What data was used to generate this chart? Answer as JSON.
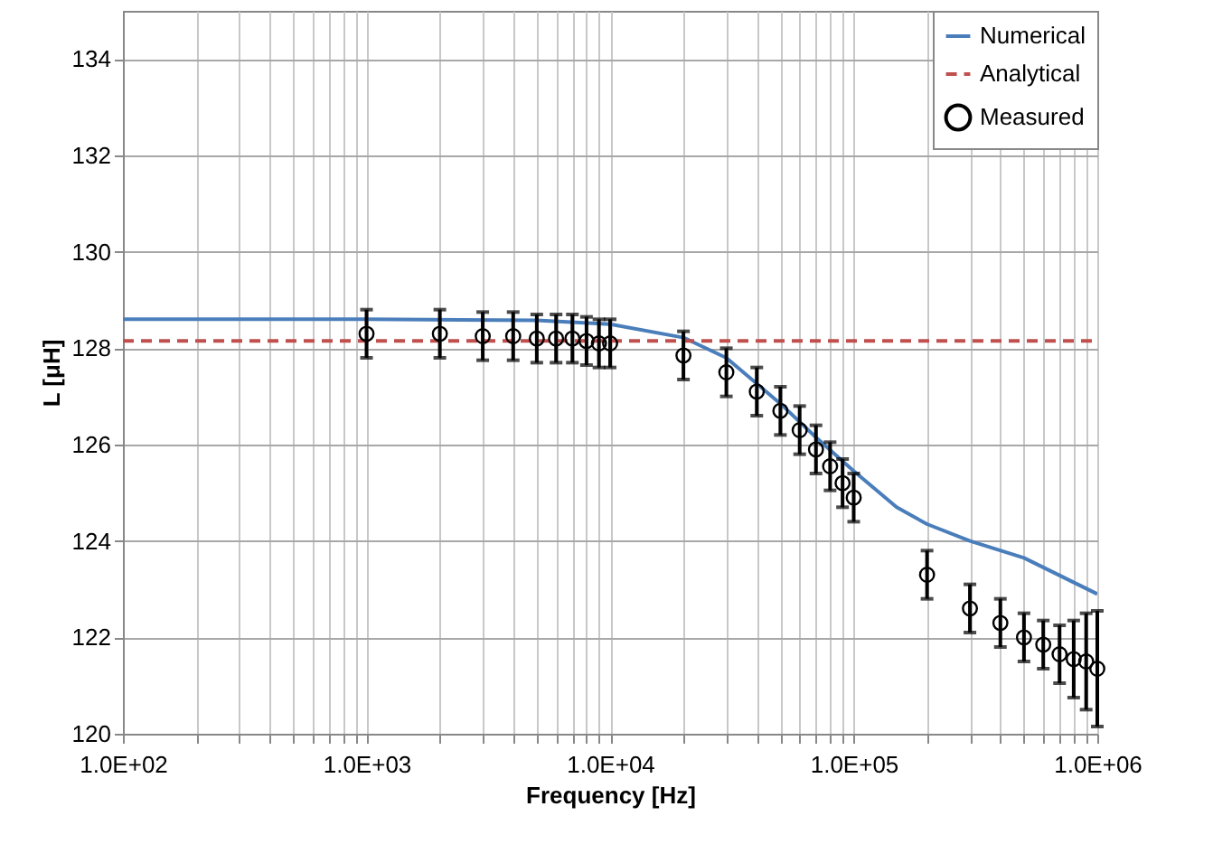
{
  "chart_data": {
    "type": "line",
    "xlabel": "Frequency [Hz]",
    "ylabel": "L [μH]",
    "log": "x",
    "grid": true,
    "legend": "top right",
    "xlim": [
      100,
      1000000
    ],
    "ylim": [
      120,
      135
    ],
    "xticks": [
      {
        "value": 100,
        "label": "1.0E+02"
      },
      {
        "value": 200,
        "label": null
      },
      {
        "value": 300,
        "label": null
      },
      {
        "value": 400,
        "label": null
      },
      {
        "value": 500,
        "label": null
      },
      {
        "value": 600,
        "label": null
      },
      {
        "value": 700,
        "label": null
      },
      {
        "value": 800,
        "label": null
      },
      {
        "value": 900,
        "label": null
      },
      {
        "value": 1000,
        "label": "1.0E+03"
      },
      {
        "value": 2000,
        "label": null
      },
      {
        "value": 3000,
        "label": null
      },
      {
        "value": 4000,
        "label": null
      },
      {
        "value": 5000,
        "label": null
      },
      {
        "value": 6000,
        "label": null
      },
      {
        "value": 7000,
        "label": null
      },
      {
        "value": 8000,
        "label": null
      },
      {
        "value": 9000,
        "label": null
      },
      {
        "value": 10000,
        "label": "1.0E+04"
      },
      {
        "value": 20000,
        "label": null
      },
      {
        "value": 30000,
        "label": null
      },
      {
        "value": 40000,
        "label": null
      },
      {
        "value": 50000,
        "label": null
      },
      {
        "value": 60000,
        "label": null
      },
      {
        "value": 70000,
        "label": null
      },
      {
        "value": 80000,
        "label": null
      },
      {
        "value": 90000,
        "label": null
      },
      {
        "value": 100000,
        "label": "1.0E+05"
      },
      {
        "value": 200000,
        "label": null
      },
      {
        "value": 300000,
        "label": null
      },
      {
        "value": 400000,
        "label": null
      },
      {
        "value": 500000,
        "label": null
      },
      {
        "value": 600000,
        "label": null
      },
      {
        "value": 700000,
        "label": null
      },
      {
        "value": 800000,
        "label": null
      },
      {
        "value": 900000,
        "label": null
      },
      {
        "value": 1000000,
        "label": "1.0E+06"
      }
    ],
    "yticks": [
      120,
      122,
      124,
      126,
      128,
      130,
      132,
      134
    ],
    "series": [
      {
        "name": "Numerical",
        "color": "#4a7ebb",
        "line_style": "solid",
        "x": [
          100,
          1000,
          5000,
          10000,
          20000,
          30000,
          50000,
          70000,
          100000,
          150000,
          200000,
          300000,
          500000,
          1000000
        ],
        "values": [
          128.6,
          128.6,
          128.58,
          128.5,
          128.22,
          127.8,
          126.85,
          126.15,
          125.45,
          124.7,
          124.35,
          124.0,
          123.65,
          122.9
        ]
      },
      {
        "name": "Analytical",
        "color": "#c0504d",
        "line_style": "dashed",
        "x": [
          100,
          1000000
        ],
        "values": [
          128.15,
          128.15
        ]
      },
      {
        "name": "Measured",
        "type": "scatter",
        "marker": "circle",
        "color": "#000000",
        "x": [
          1000,
          2000,
          3000,
          4000,
          5000,
          6000,
          7000,
          8000,
          9000,
          10000,
          20000,
          30000,
          40000,
          50000,
          60000,
          70000,
          80000,
          90000,
          100000,
          200000,
          300000,
          400000,
          500000,
          600000,
          700000,
          800000,
          900000,
          1000000
        ],
        "values": [
          128.3,
          128.3,
          128.25,
          128.25,
          128.2,
          128.2,
          128.2,
          128.15,
          128.1,
          128.1,
          127.85,
          127.5,
          127.1,
          126.7,
          126.3,
          125.9,
          125.55,
          125.2,
          124.9,
          123.3,
          122.6,
          122.3,
          122.0,
          121.85,
          121.65,
          121.55,
          121.5,
          121.35
        ],
        "errors": [
          0.5,
          0.5,
          0.5,
          0.5,
          0.5,
          0.5,
          0.5,
          0.5,
          0.5,
          0.5,
          0.5,
          0.5,
          0.5,
          0.5,
          0.5,
          0.5,
          0.5,
          0.5,
          0.5,
          0.5,
          0.5,
          0.5,
          0.5,
          0.5,
          0.6,
          0.8,
          1.0,
          1.2
        ]
      }
    ]
  }
}
